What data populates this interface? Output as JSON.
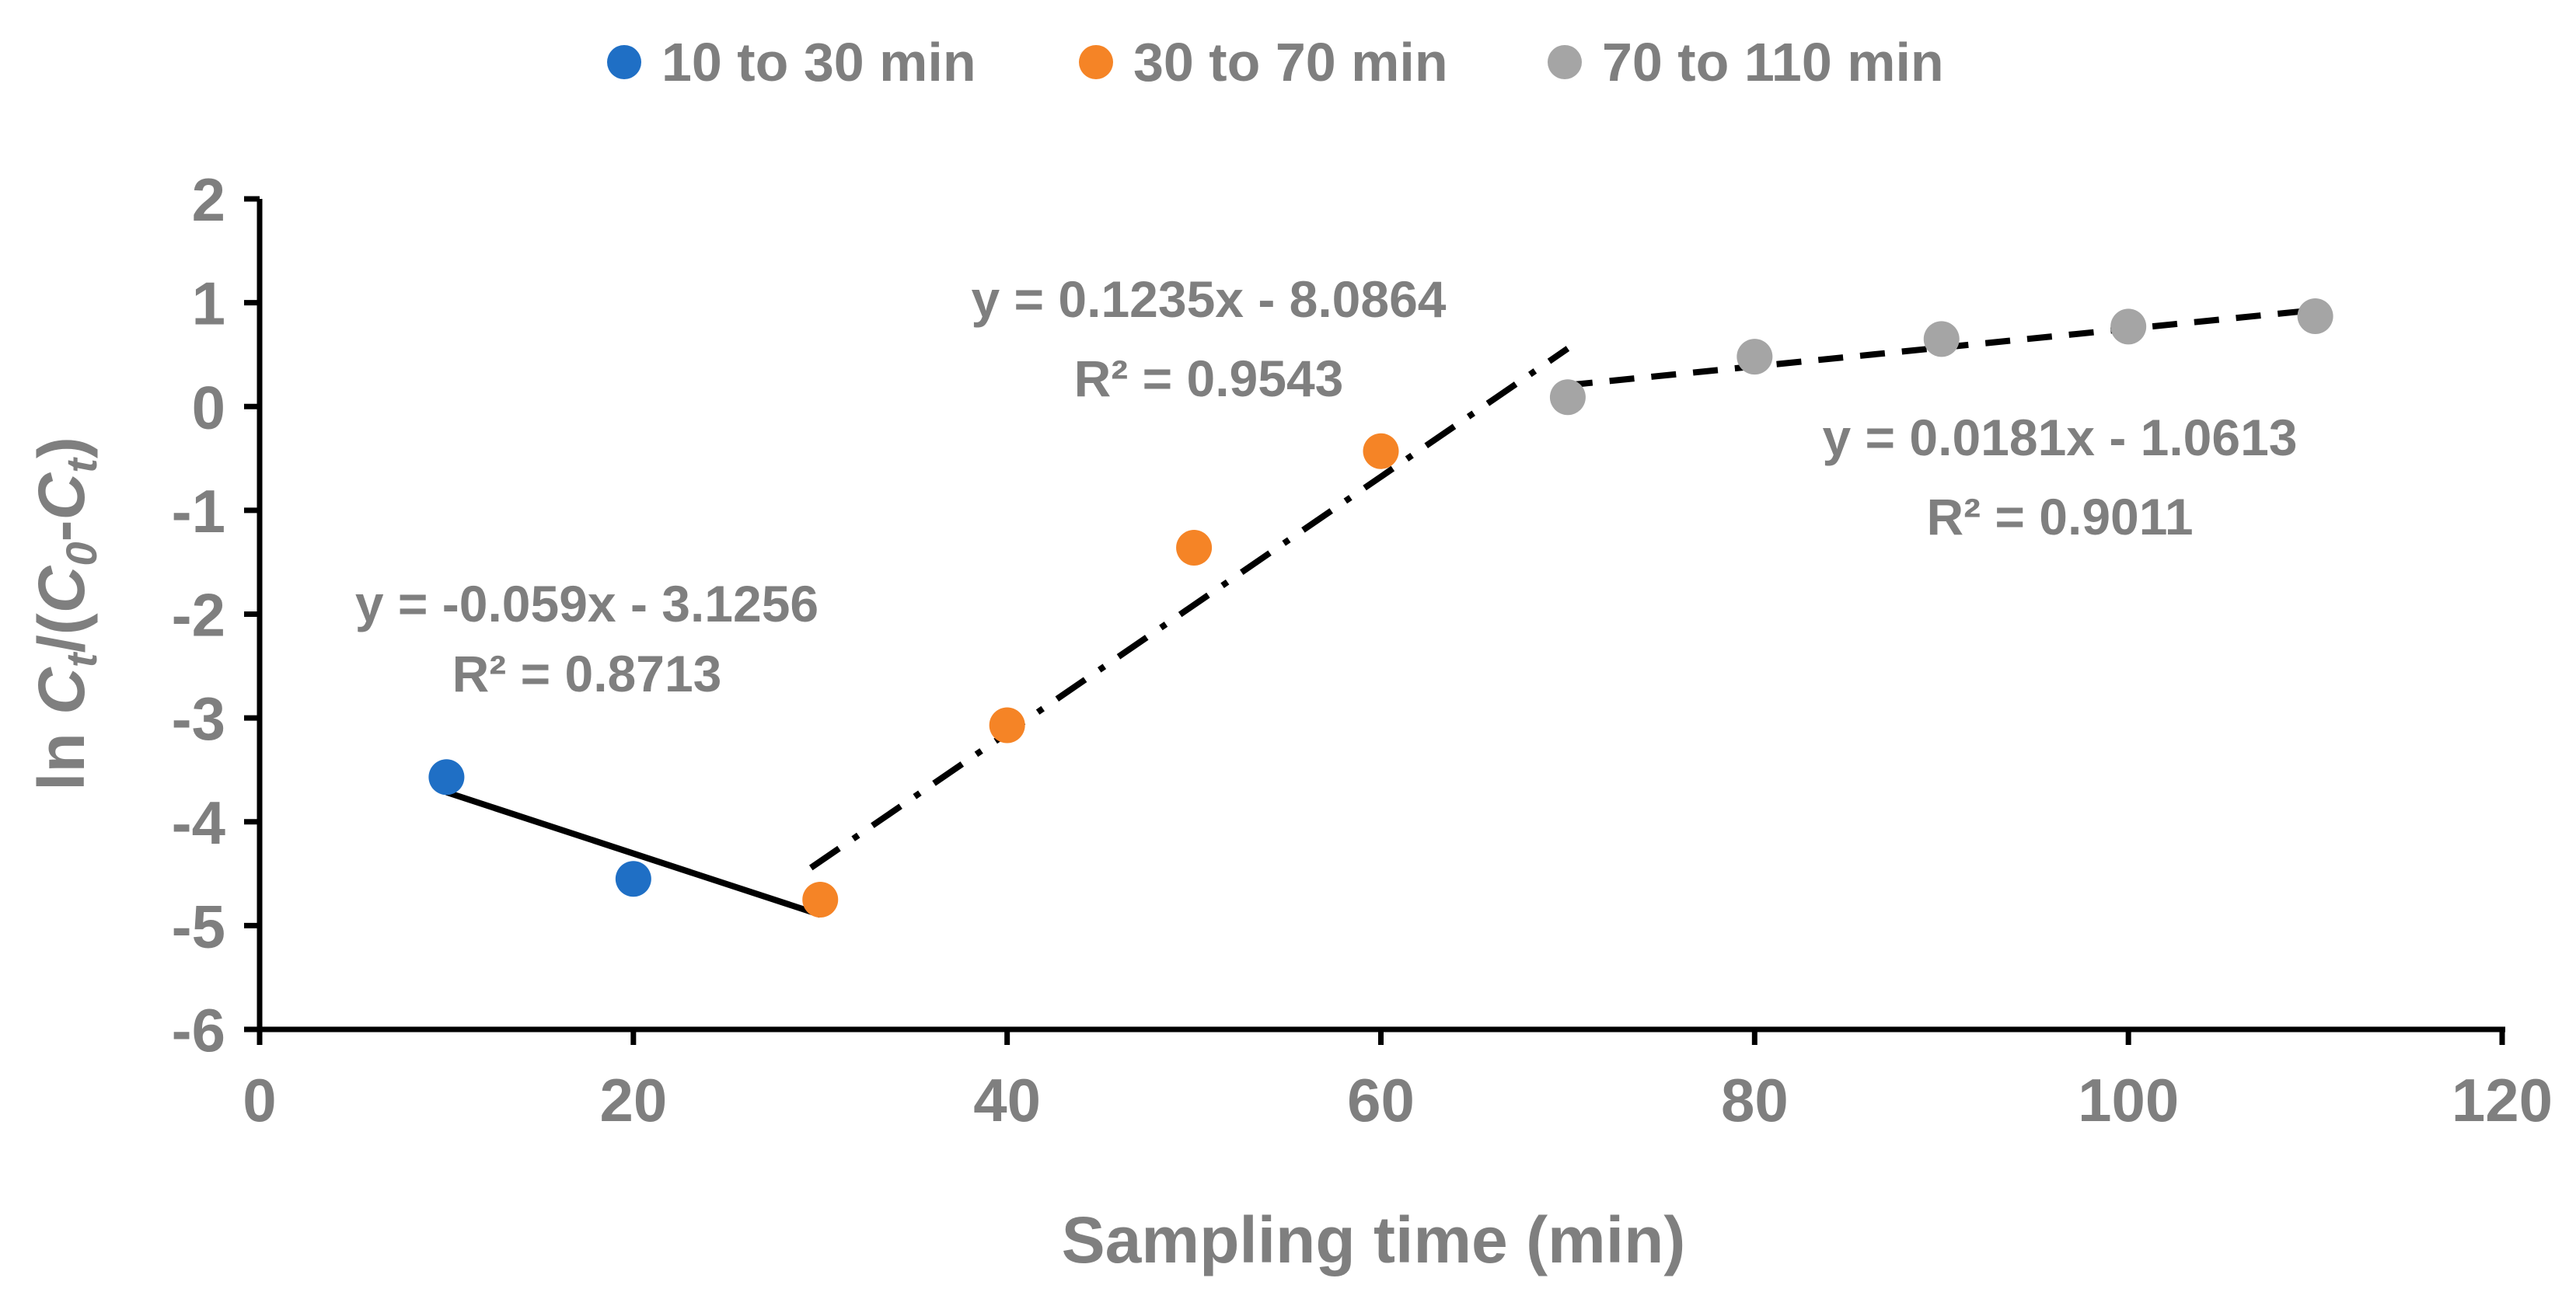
{
  "chart_data": {
    "type": "scatter",
    "title": "",
    "xlabel": "Sampling time (min)",
    "ylabel": "ln C_t/(C_0-C_t)",
    "ylabel_parts": [
      "ln ",
      "C",
      "t",
      "/(",
      "C",
      "0",
      "-",
      "C",
      "t",
      ")"
    ],
    "xlim": [
      0,
      120
    ],
    "ylim": [
      -6,
      2
    ],
    "xticks": [
      0,
      20,
      40,
      60,
      80,
      100,
      120
    ],
    "yticks": [
      -6,
      -5,
      -4,
      -3,
      -2,
      -1,
      0,
      1,
      2
    ],
    "grid": false,
    "legend_position": "top",
    "series": [
      {
        "name": "10 to 30 min",
        "color": "#1f6fc5",
        "x": [
          10,
          20
        ],
        "y": [
          -3.57,
          -4.55
        ],
        "trendline": {
          "slope": -0.059,
          "intercept": -3.1256,
          "x_range": [
            10,
            30
          ],
          "style": "solid",
          "equation": "y = -0.059x - 3.1256",
          "r2": "R² = 0.8713"
        }
      },
      {
        "name": "30 to 70 min",
        "color": "#f58426",
        "x": [
          30,
          40,
          50,
          60
        ],
        "y": [
          -4.75,
          -3.07,
          -1.36,
          -0.43
        ],
        "trendline": {
          "slope": 0.1235,
          "intercept": -8.0864,
          "x_range": [
            29.5,
            70
          ],
          "style": "dash-dot",
          "equation": "y = 0.1235x - 8.0864",
          "r2": "R² = 0.9543"
        }
      },
      {
        "name": "70 to 110 min",
        "color": "#a5a5a5",
        "x": [
          70,
          80,
          90,
          100,
          110
        ],
        "y": [
          0.09,
          0.48,
          0.65,
          0.77,
          0.87
        ],
        "trendline": {
          "slope": 0.0181,
          "intercept": -1.0613,
          "x_range": [
            70,
            110
          ],
          "style": "dashed",
          "equation": "y = 0.0181x - 1.0613",
          "r2": "R² = 0.9011"
        }
      }
    ]
  }
}
